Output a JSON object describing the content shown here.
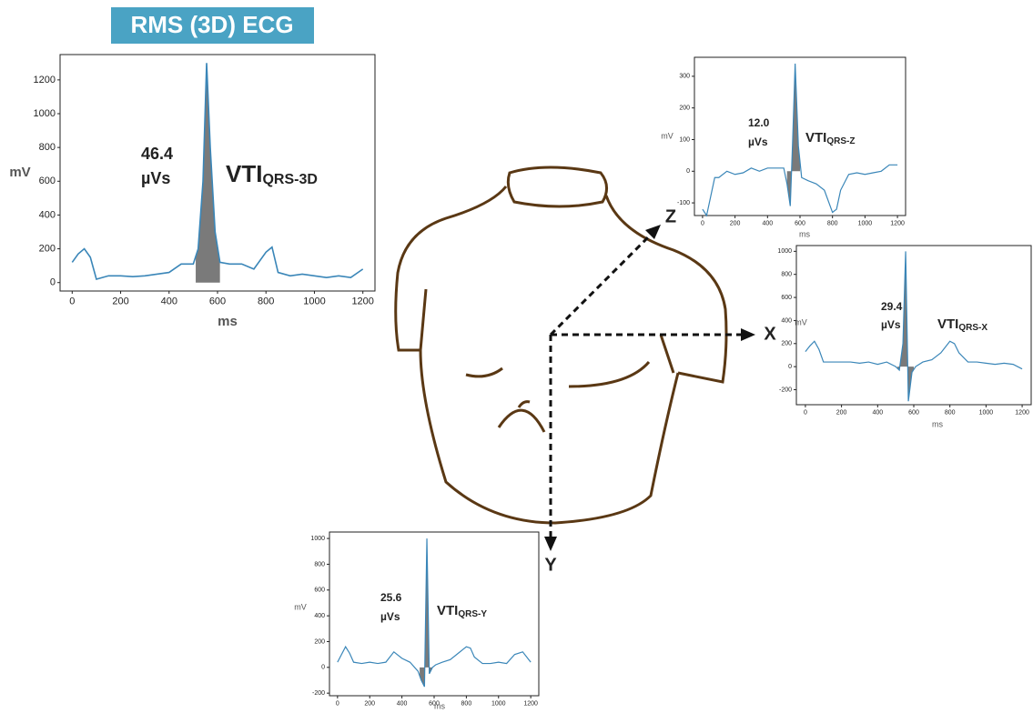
{
  "title": "RMS (3D) ECG",
  "diagram": {
    "axes": {
      "x": "X",
      "y": "Y",
      "z": "Z"
    }
  },
  "chart_data": [
    {
      "type": "line",
      "color": "#3a86b8",
      "xlabel": "ms",
      "ylabel": "mV",
      "x": [
        0,
        25,
        50,
        75,
        100,
        150,
        200,
        250,
        300,
        350,
        400,
        450,
        500,
        520,
        540,
        555,
        570,
        590,
        610,
        650,
        700,
        750,
        800,
        825,
        850,
        900,
        950,
        1000,
        1050,
        1100,
        1150,
        1200
      ],
      "values": [
        120,
        170,
        200,
        150,
        20,
        40,
        40,
        35,
        40,
        50,
        60,
        110,
        110,
        200,
        600,
        1300,
        800,
        300,
        120,
        110,
        110,
        80,
        180,
        210,
        60,
        40,
        50,
        40,
        30,
        40,
        30,
        80
      ],
      "xlim": [
        -50,
        1250
      ],
      "xticks": [
        0,
        200,
        400,
        600,
        800,
        1000,
        1200
      ],
      "ylim": [
        -50,
        1350
      ],
      "yticks": [
        0,
        200,
        400,
        600,
        800,
        1000,
        1200
      ],
      "shade_x": [
        510,
        610
      ],
      "shade_color": "#7a7a7a",
      "area_value": "46.4",
      "area_unit": "µVs",
      "vti_label": "VTI",
      "vti_subscript": "QRS-3D"
    },
    {
      "type": "line",
      "color": "#3a86b8",
      "xlabel": "ms",
      "ylabel": "mV",
      "x": [
        0,
        25,
        50,
        75,
        100,
        150,
        200,
        250,
        300,
        350,
        400,
        450,
        500,
        520,
        540,
        555,
        570,
        590,
        610,
        650,
        700,
        750,
        800,
        825,
        850,
        900,
        950,
        1000,
        1050,
        1100,
        1150,
        1200
      ],
      "values": [
        -120,
        -140,
        -80,
        -20,
        -20,
        0,
        -10,
        -5,
        10,
        0,
        10,
        10,
        10,
        -40,
        -110,
        100,
        340,
        80,
        -20,
        -30,
        -40,
        -60,
        -130,
        -120,
        -60,
        -10,
        -5,
        -10,
        -5,
        0,
        20,
        20
      ],
      "xlim": [
        -50,
        1250
      ],
      "xticks": [
        0,
        200,
        400,
        600,
        800,
        1000,
        1200
      ],
      "ylim": [
        -140,
        360
      ],
      "yticks": [
        -100,
        0,
        100,
        200,
        300
      ],
      "shade_x": [
        520,
        600
      ],
      "shade_color": "#7a7a7a",
      "area_value": "12.0",
      "area_unit": "µVs",
      "vti_label": "VTI",
      "vti_subscript": "QRS-Z"
    },
    {
      "type": "line",
      "color": "#3a86b8",
      "xlabel": "ms",
      "ylabel": "mV",
      "x": [
        0,
        25,
        50,
        75,
        100,
        150,
        200,
        250,
        300,
        350,
        400,
        450,
        500,
        520,
        540,
        555,
        570,
        590,
        610,
        650,
        700,
        750,
        800,
        825,
        850,
        900,
        950,
        1000,
        1050,
        1100,
        1150,
        1200
      ],
      "values": [
        130,
        180,
        220,
        150,
        40,
        40,
        40,
        40,
        30,
        40,
        20,
        40,
        0,
        -30,
        200,
        1000,
        -300,
        -50,
        0,
        40,
        60,
        120,
        220,
        200,
        120,
        40,
        40,
        30,
        20,
        30,
        20,
        -20
      ],
      "xlim": [
        -50,
        1250
      ],
      "xticks": [
        0,
        200,
        400,
        600,
        800,
        1000,
        1200
      ],
      "ylim": [
        -330,
        1050
      ],
      "yticks": [
        -200,
        0,
        200,
        400,
        600,
        800,
        1000
      ],
      "shade_x": [
        510,
        600
      ],
      "shade_color": "#7a7a7a",
      "area_value": "29.4",
      "area_unit": "µVs",
      "vti_label": "VTI",
      "vti_subscript": "QRS-X"
    },
    {
      "type": "line",
      "color": "#3a86b8",
      "xlabel": "ms",
      "ylabel": "mV",
      "x": [
        0,
        25,
        50,
        75,
        100,
        150,
        200,
        250,
        300,
        350,
        400,
        450,
        500,
        520,
        540,
        555,
        570,
        590,
        610,
        650,
        700,
        750,
        800,
        825,
        850,
        900,
        950,
        1000,
        1050,
        1100,
        1150,
        1200
      ],
      "values": [
        40,
        100,
        160,
        110,
        40,
        30,
        40,
        30,
        40,
        120,
        70,
        40,
        -30,
        -100,
        -150,
        1000,
        -50,
        0,
        20,
        40,
        60,
        110,
        160,
        150,
        80,
        30,
        30,
        40,
        30,
        100,
        120,
        40
      ],
      "xlim": [
        -50,
        1250
      ],
      "xticks": [
        0,
        200,
        400,
        600,
        800,
        1000,
        1200
      ],
      "ylim": [
        -220,
        1050
      ],
      "yticks": [
        -200,
        0,
        200,
        400,
        600,
        800,
        1000
      ],
      "shade_x": [
        510,
        590
      ],
      "shade_color": "#7a7a7a",
      "area_value": "25.6",
      "area_unit": "µVs",
      "vti_label": "VTI",
      "vti_subscript": "QRS-Y"
    }
  ]
}
